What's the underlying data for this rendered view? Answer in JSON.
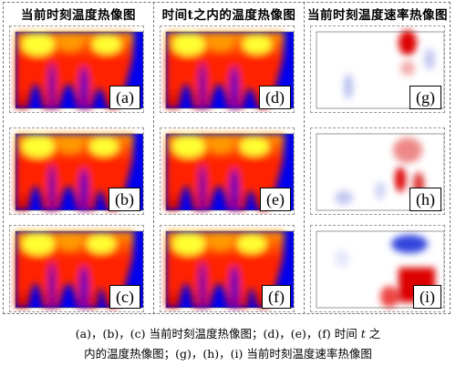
{
  "headers": [
    {
      "id": "current",
      "text": "当前时刻温度热像图"
    },
    {
      "id": "window",
      "text": "时间t之内的温度热像图"
    },
    {
      "id": "rate",
      "text": "当前时刻温度速率热像图"
    }
  ],
  "panels": [
    {
      "label": "(a)",
      "kind": "heat",
      "variant": 0
    },
    {
      "label": "(d)",
      "kind": "heat",
      "variant": 3
    },
    {
      "label": "(g)",
      "kind": "rate",
      "variant": 0
    },
    {
      "label": "(b)",
      "kind": "heat",
      "variant": 1
    },
    {
      "label": "(e)",
      "kind": "heat",
      "variant": 4
    },
    {
      "label": "(h)",
      "kind": "rate",
      "variant": 1
    },
    {
      "label": "(c)",
      "kind": "heat",
      "variant": 2
    },
    {
      "label": "(f)",
      "kind": "heat",
      "variant": 5
    },
    {
      "label": "(i)",
      "kind": "rate",
      "variant": 2
    }
  ],
  "caption": {
    "line1_a": "(a)，(b)，(c) 当前时刻温度热像图；(d)，(e)，(f) 时间",
    "line1_t": "t",
    "line1_b": "之",
    "line2": "内的温度热像图；(g)，(h)，(i) 当前时刻温度速率热像图"
  },
  "colors": {
    "hot": "#ffff33",
    "warm": "#ff9900",
    "mid": "#ff2200",
    "cool": "#0000ee",
    "rate_pos": "#dd0000",
    "rate_neg": "#3344dd",
    "rate_zero": "#ffffff"
  }
}
